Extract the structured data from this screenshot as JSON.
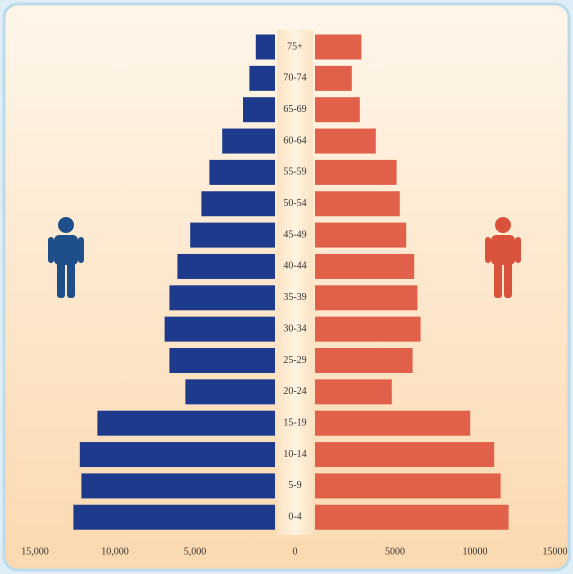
{
  "chart_data": {
    "type": "pyramid",
    "categories": [
      "75+",
      "70-74",
      "65-69",
      "60-64",
      "55-59",
      "50-54",
      "45-49",
      "40-44",
      "35-39",
      "30-34",
      "25-29",
      "20-24",
      "15-19",
      "10-14",
      "5-9",
      "0-4"
    ],
    "series": [
      {
        "color": "#1e3a8c",
        "side": "left",
        "values": [
          1200,
          1600,
          2000,
          3300,
          4100,
          4600,
          5300,
          6100,
          6600,
          6900,
          6600,
          5600,
          11100,
          12200,
          12100,
          12600
        ]
      },
      {
        "color": "#e0604a",
        "side": "right",
        "values": [
          2900,
          2300,
          2800,
          3800,
          5100,
          5300,
          5700,
          6200,
          6400,
          6600,
          6100,
          4800,
          9700,
          11200,
          11600,
          12100
        ]
      }
    ],
    "xlim": [
      0,
      15000
    ],
    "xticks": [
      {
        "value": -15000,
        "label": "15,000"
      },
      {
        "value": -10000,
        "label": "10,000"
      },
      {
        "value": -5000,
        "label": "5,000"
      },
      0,
      5000,
      10000,
      15000
    ]
  }
}
